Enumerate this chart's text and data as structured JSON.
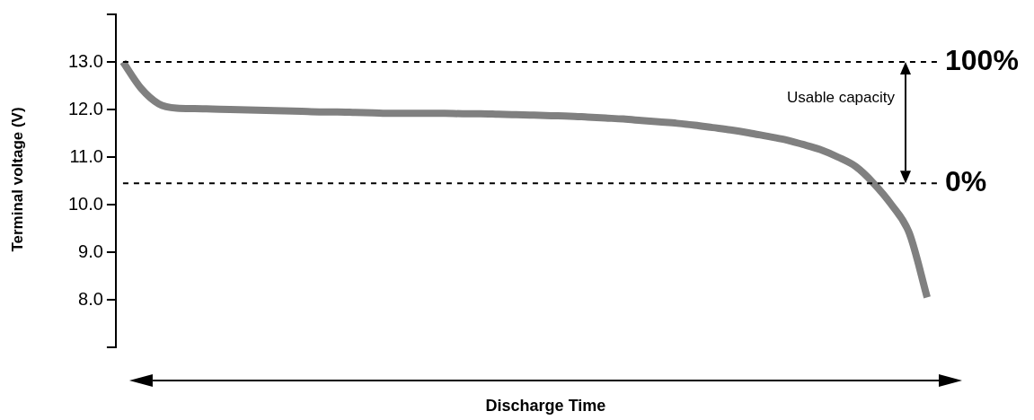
{
  "chart_data": {
    "type": "line",
    "xlabel": "Discharge Time",
    "ylabel": "Terminal voltage (V)",
    "categories": [
      null,
      null,
      null,
      null,
      null,
      null,
      null,
      null,
      null,
      null,
      null,
      null,
      null,
      null,
      null,
      null,
      null,
      null,
      null,
      null,
      null,
      null,
      null,
      null,
      null,
      null,
      null,
      null,
      null,
      null,
      null,
      null,
      null,
      null,
      null,
      null,
      null,
      null,
      null,
      null,
      null,
      null,
      null,
      null,
      null,
      null
    ],
    "series": [
      {
        "color": "#808080",
        "values": [
          13.0,
          12.45,
          12.12,
          12.03,
          12.02,
          12.01,
          12.0,
          11.99,
          11.98,
          11.97,
          11.96,
          11.95,
          11.95,
          11.94,
          11.93,
          11.92,
          11.92,
          11.92,
          11.92,
          11.91,
          11.91,
          11.9,
          11.89,
          11.88,
          11.87,
          11.86,
          11.84,
          11.82,
          11.8,
          11.77,
          11.74,
          11.71,
          11.67,
          11.62,
          11.57,
          11.51,
          11.44,
          11.37,
          11.27,
          11.16,
          11.0,
          10.8,
          10.45,
          10.0,
          9.4,
          8.05
        ]
      }
    ],
    "ylim": [
      7,
      14
    ],
    "yticks": [
      {
        "value": 7,
        "label": null
      },
      {
        "value": 8,
        "label": "8.0"
      },
      {
        "value": 9,
        "label": "9.0"
      },
      {
        "value": 10,
        "label": "10.0"
      },
      {
        "value": 11,
        "label": "11.0"
      },
      {
        "value": 12,
        "label": "12.0"
      },
      {
        "value": 13,
        "label": "13.0"
      },
      {
        "value": 14,
        "label": null
      }
    ],
    "ref_lines": [
      {
        "axis": "y",
        "value": 13.0,
        "color": "#000000",
        "line_style": "dashed"
      },
      {
        "axis": "y",
        "value": 10.45,
        "color": "#000000",
        "line_style": "dashed"
      }
    ],
    "annotations": [
      "100%",
      "0%",
      "Usable capacity"
    ],
    "tick_labels": "y",
    "grid": false,
    "legend": false,
    "marker": "none",
    "line_style": "solid"
  }
}
